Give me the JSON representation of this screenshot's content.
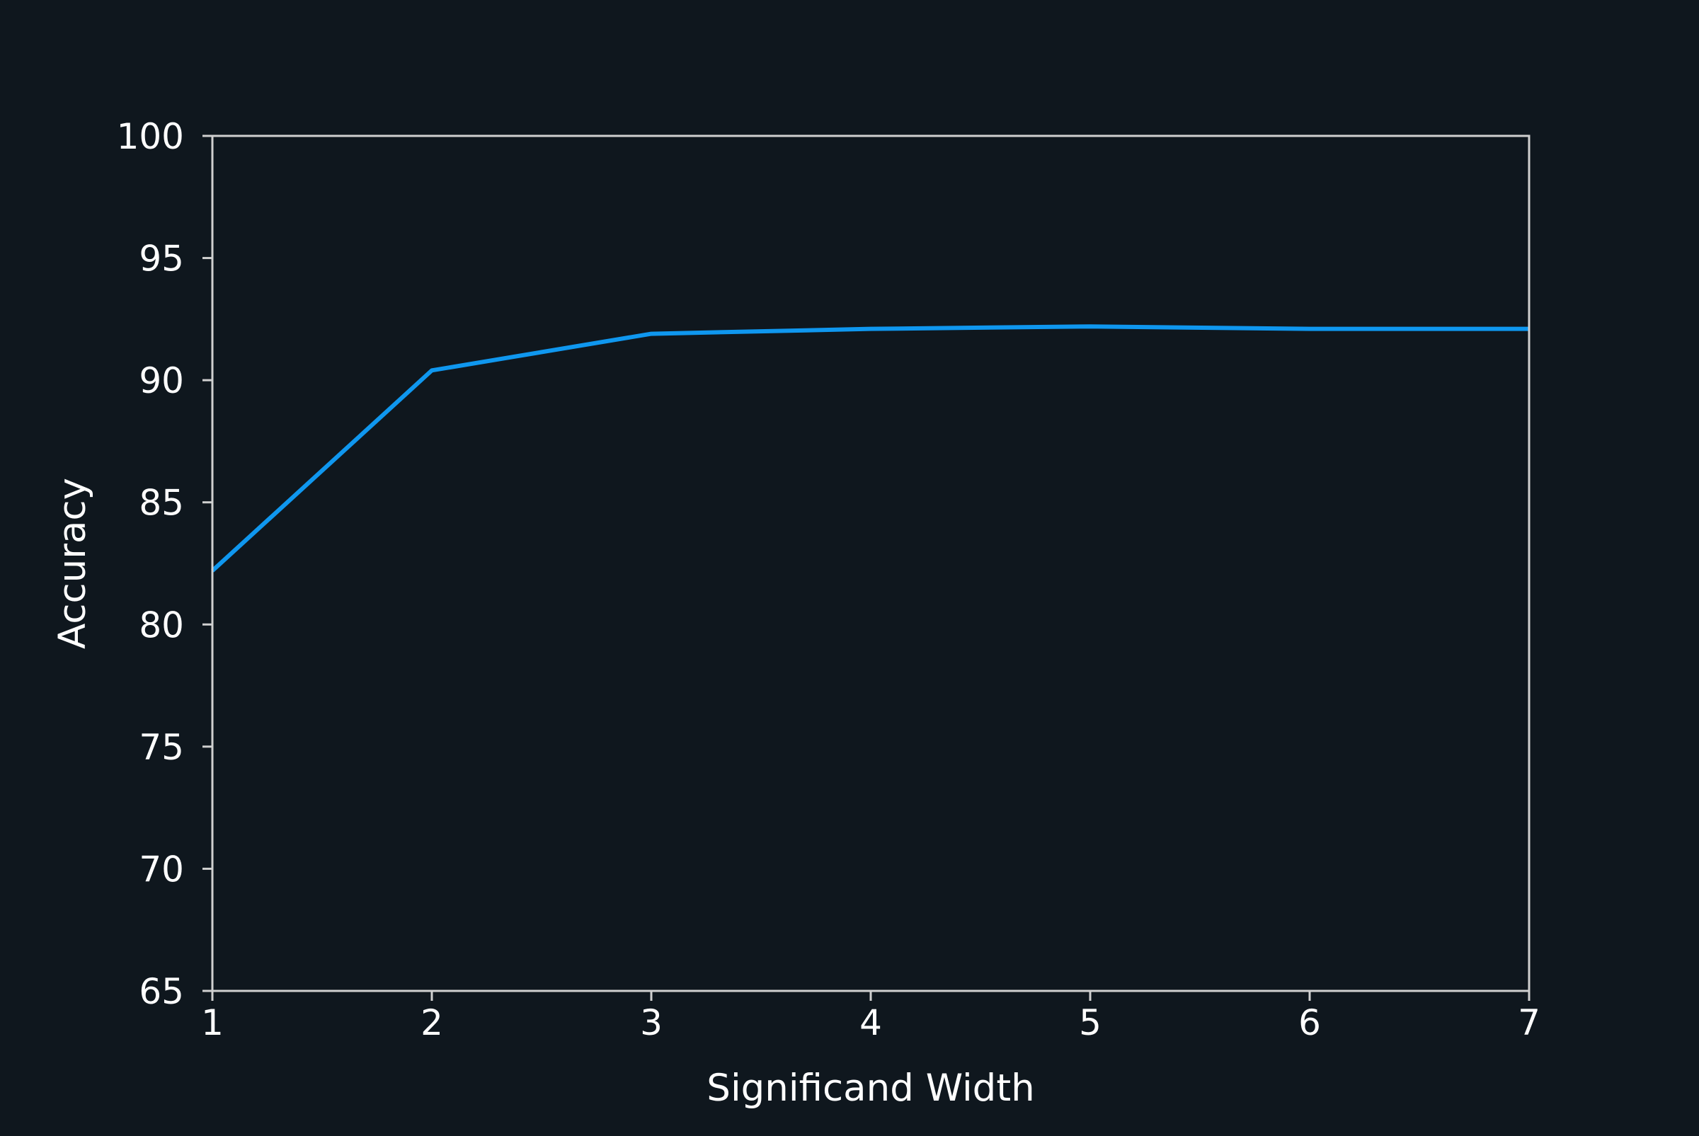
{
  "chart_data": {
    "type": "line",
    "title": "",
    "xlabel": "Significand Width",
    "ylabel": "Accuracy",
    "xlim": [
      1,
      7
    ],
    "ylim": [
      65,
      100
    ],
    "x_ticks": [
      1,
      2,
      3,
      4,
      5,
      6,
      7
    ],
    "y_ticks": [
      65,
      70,
      75,
      80,
      85,
      90,
      95,
      100
    ],
    "grid": false,
    "legend": "none",
    "series": [
      {
        "x": [
          1,
          2,
          3,
          4,
          5,
          6,
          7
        ],
        "values": [
          82.2,
          90.4,
          91.9,
          92.1,
          92.2,
          92.1,
          92.1
        ],
        "color": "#0f97ef"
      }
    ]
  },
  "colors": {
    "background": "#0f171e",
    "axes": "#d0d0d0",
    "text": "#ffffff",
    "line": "#0f97ef"
  }
}
